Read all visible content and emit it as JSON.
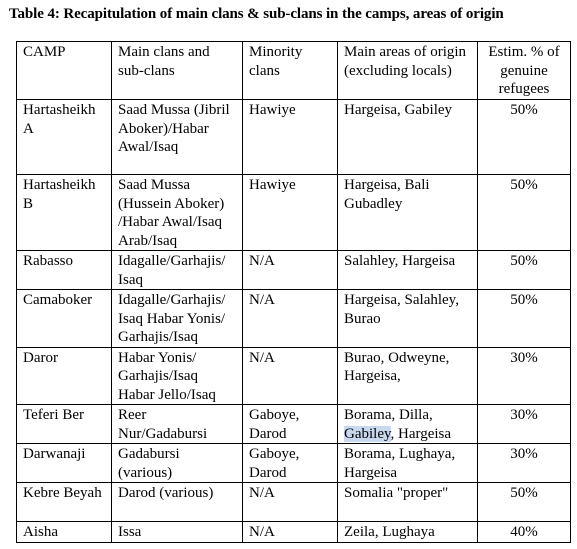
{
  "caption": "Table 4: Recapitulation of main clans & sub-clans in the camps, areas of origin",
  "headers": {
    "camp": "CAMP",
    "main_clans": "Main clans and sub-clans",
    "minority": "Minority clans",
    "origin": "Main areas of origin (excluding locals)",
    "estim": "Estim. % of genuine refugees"
  },
  "rows": [
    {
      "camp": "Hartasheikh A",
      "main_clans": "Saad Mussa (Jibril Aboker)/Habar Awal/Isaq",
      "minority": "Hawiye",
      "origin": "Hargeisa, Gabiley",
      "estim": "50%"
    },
    {
      "camp": "Hartasheikh B",
      "main_clans": "Saad Mussa (Hussein Aboker) /Habar Awal/Isaq Arab/Isaq",
      "minority": "Hawiye",
      "origin": "Hargeisa, Bali Gubadley",
      "estim": "50%"
    },
    {
      "camp": "Rabasso",
      "main_clans": "Idagalle/Garhajis/ Isaq",
      "minority": "N/A",
      "origin": "Salahley, Hargeisa",
      "estim": "50%"
    },
    {
      "camp": "Camaboker",
      "main_clans": "Idagalle/Garhajis/ Isaq Habar Yonis/ Garhajis/Isaq",
      "minority": "N/A",
      "origin": "Hargeisa, Salahley, Burao",
      "estim": "50%"
    },
    {
      "camp": "Daror",
      "main_clans": "Habar Yonis/ Garhajis/Isaq Habar Jello/Isaq",
      "minority": "N/A",
      "origin": "Burao, Odweyne, Hargeisa,",
      "estim": "30%"
    },
    {
      "camp": "Teferi Ber",
      "main_clans": "Reer Nur/Gadabursi",
      "minority": "Gaboye, Darod",
      "origin_pre": "Borama, Dilla,",
      "origin_hl": "Gabiley",
      "origin_post": ", Hargeisa",
      "estim": "30%"
    },
    {
      "camp": "Darwanaji",
      "main_clans": "Gadabursi (various)",
      "minority": "Gaboye, Darod",
      "origin": "Borama, Lughaya, Hargeisa",
      "estim": "30%"
    },
    {
      "camp": "Kebre Beyah",
      "main_clans": "Darod (various)",
      "minority": "N/A",
      "origin": "Somalia \"proper\"",
      "estim": "50%"
    },
    {
      "camp": "Aisha",
      "main_clans": "Issa",
      "minority": "N/A",
      "origin": "Zeila, Lughaya",
      "estim": "40%"
    }
  ]
}
